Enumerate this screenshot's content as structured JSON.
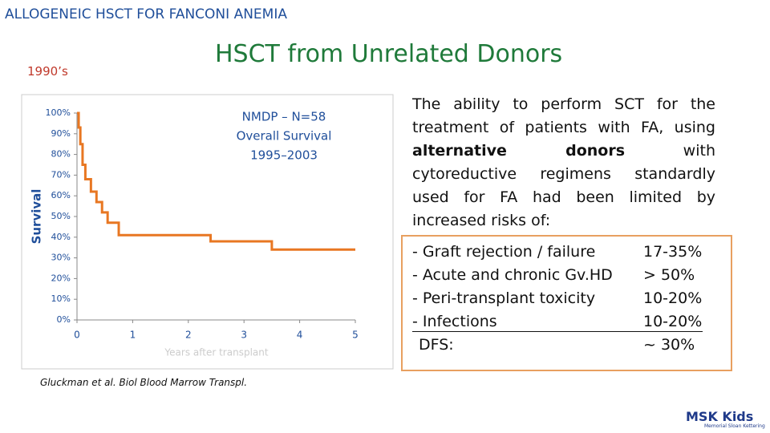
{
  "header": {
    "title": "ALLOGENEIC HSCT FOR FANCONI ANEMIA",
    "era": "1990’s",
    "heading": "HSCT from Unrelated Donors"
  },
  "chart_data": {
    "type": "line",
    "annotation": [
      "NMDP – N=58",
      "Overall Survival",
      "1995–2003"
    ],
    "y_label": "Survival",
    "x_label": "Years after transplant",
    "x": [
      0,
      0.03,
      0.03,
      0.06,
      0.06,
      0.1,
      0.1,
      0.15,
      0.15,
      0.25,
      0.25,
      0.35,
      0.35,
      0.45,
      0.45,
      0.55,
      0.55,
      0.75,
      0.75,
      2.4,
      2.4,
      3.5,
      3.5,
      5
    ],
    "values": [
      100,
      100,
      93,
      93,
      85,
      85,
      75,
      75,
      68,
      68,
      62,
      62,
      57,
      57,
      52,
      52,
      47,
      47,
      41,
      41,
      38,
      38,
      34,
      34
    ],
    "color": "#e87722",
    "xlim": [
      0,
      5
    ],
    "ylim": [
      0,
      100
    ],
    "xticks": [
      0,
      1,
      2,
      3,
      4,
      5
    ],
    "yticks": [
      {
        "value": 0,
        "label": "0%"
      },
      {
        "value": 10,
        "label": "10%"
      },
      {
        "value": 20,
        "label": "20%"
      },
      {
        "value": 30,
        "label": "30%"
      },
      {
        "value": 40,
        "label": "40%"
      },
      {
        "value": 50,
        "label": "50%"
      },
      {
        "value": 60,
        "label": "60%"
      },
      {
        "value": 70,
        "label": "70%"
      },
      {
        "value": 80,
        "label": "80%"
      },
      {
        "value": 90,
        "label": "90%"
      },
      {
        "value": 100,
        "label": "100%"
      }
    ]
  },
  "citation": "Gluckman et al. Biol Blood Marrow Transpl.",
  "paragraph": [
    "The ability to perform SCT for the treatment of patients with FA, using ",
    "alternative donors",
    " with cytoreductive regimens standardly used for FA had been limited by increased risks of:"
  ],
  "risks": [
    [
      "- Graft rejection / failure",
      "17-35%"
    ],
    [
      "- Acute and chronic Gv.HD",
      "> 50%"
    ],
    [
      "- Peri-transplant toxicity",
      "10-20%"
    ],
    [
      "- Infections",
      "10-20%"
    ],
    [
      "DFS:",
      "~ 30%"
    ]
  ],
  "logo": {
    "name": "MSK Kids",
    "sub": "Memorial Sloan Kettering"
  }
}
